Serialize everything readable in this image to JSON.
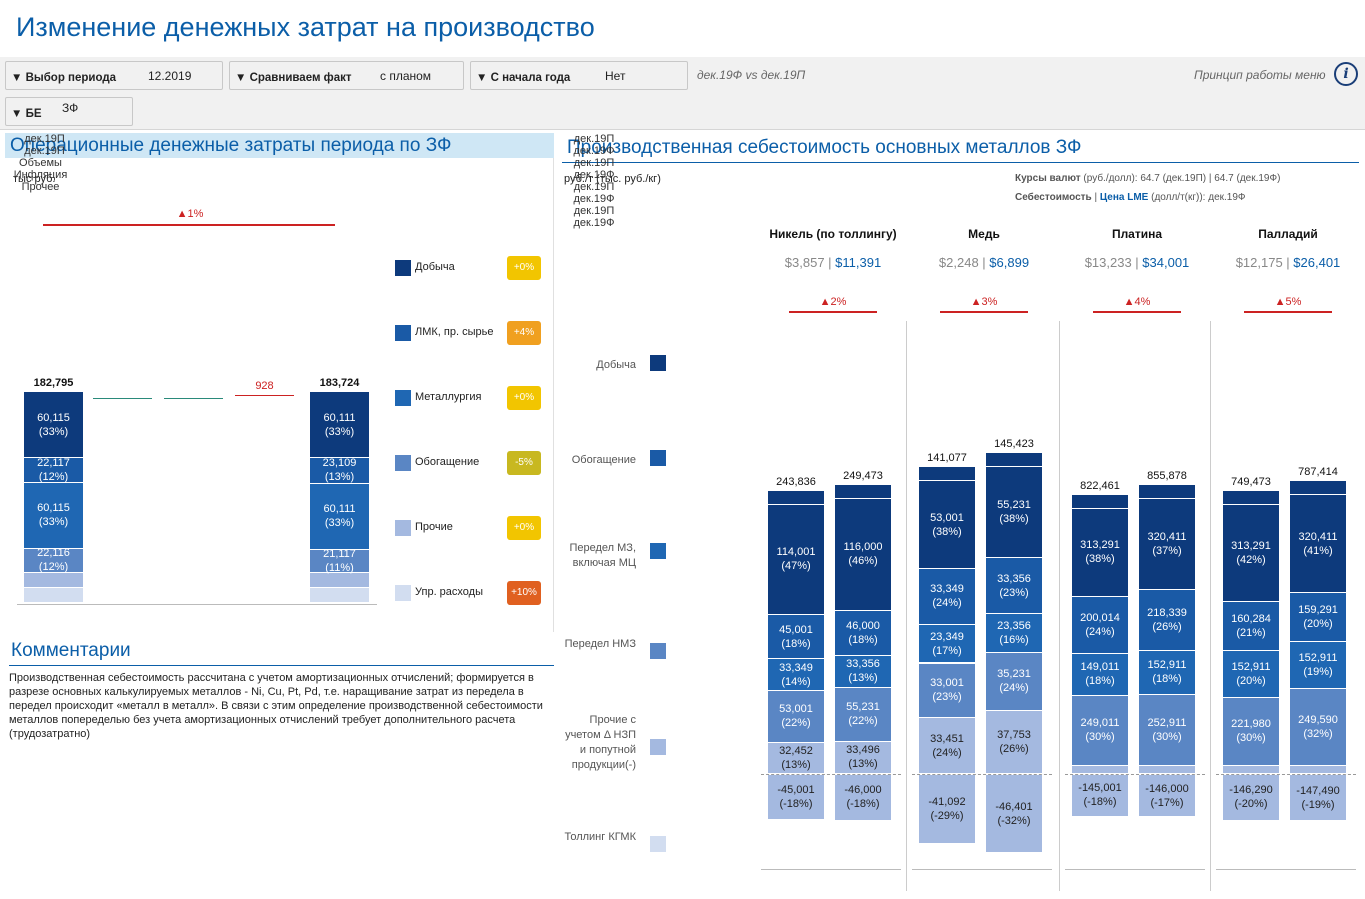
{
  "title": "Изменение денежных затрат на производство",
  "filters": {
    "period_label": "Выбор периода",
    "period_value": "12.2019",
    "compare_label": "Сравниваем факт",
    "compare_value": "с планом",
    "ytd_label": "С начала года",
    "ytd_value": "Нет",
    "be_label": "БЕ",
    "be_value": "ЗФ",
    "comparison_text": "дек.19Ф vs дек.19П",
    "help_link": "Принцип работы меню"
  },
  "colors": {
    "c1": "#0d3a7c",
    "c2": "#1a5aa6",
    "c3": "#1f67b3",
    "c4": "#5a86c4",
    "c5": "#a4b9e0",
    "c6": "#d2ddf0",
    "red": "#cc2222",
    "accent": "#0b5ea8"
  },
  "left_panel": {
    "title": "Операционные денежные затраты периода по ЗФ",
    "unit": "тыс руб.",
    "total_delta": "▲1%",
    "bar1": {
      "total": "182,795",
      "label": "дек.19П",
      "segments": [
        {
          "v": "60,115",
          "p": "(33%)"
        },
        {
          "v": "22,117",
          "p": "(12%)"
        },
        {
          "v": "60,115",
          "p": "(33%)"
        },
        {
          "v": "22,116",
          "p": "(12%)"
        },
        {
          "v": "",
          "p": ""
        },
        {
          "v": "",
          "p": ""
        }
      ]
    },
    "bar2": {
      "total": "183,724",
      "label": "дек.19П",
      "segments": [
        {
          "v": "60,111",
          "p": "(33%)"
        },
        {
          "v": "23,109",
          "p": "(13%)"
        },
        {
          "v": "60,111",
          "p": "(33%)"
        },
        {
          "v": "21,117",
          "p": "(11%)"
        },
        {
          "v": "",
          "p": ""
        },
        {
          "v": "",
          "p": ""
        }
      ]
    },
    "bridge": [
      {
        "label": "Объемы",
        "value": ""
      },
      {
        "label": "Инфляция",
        "value": ""
      },
      {
        "label": "Прочее",
        "value": "928"
      }
    ],
    "legend": [
      {
        "name": "Добыча",
        "change": "+0%",
        "badge": "#f2c500"
      },
      {
        "name": "ЛМК, пр. сырье",
        "change": "+4%",
        "badge": "#f0a020"
      },
      {
        "name": "Металлургия",
        "change": "+0%",
        "badge": "#f2c500"
      },
      {
        "name": "Обогащение",
        "change": "-5%",
        "badge": "#c8b820"
      },
      {
        "name": "Прочие",
        "change": "+0%",
        "badge": "#f2c500"
      },
      {
        "name": "Упр. расходы",
        "change": "+10%",
        "badge": "#e06020"
      }
    ]
  },
  "comments": {
    "title": "Комментарии",
    "text": "Производственная себестоимость рассчитана с учетом амортизационных отчислений; формируется в разрезе основных калькулируемых металлов - Ni, Cu, Pt, Pd, т.е. наращивание затрат из передела в передел происходит «металл в металл». В связи с этим определение производственной себестоимости металлов попеределью без учета амортизационных отчислений требует дополнительного расчета (трудозатратно)"
  },
  "right_panel": {
    "title": "Производственная себестоимость основных металлов ЗФ",
    "unit": "руб./т (тыс. руб./кг)",
    "fx_label": "Курсы валют",
    "fx_text": "(руб./долл): 64.7 (дек.19П) | 64.7 (дек.19Ф)",
    "cost_label": "Себестоимость",
    "lme_label": "Цена LME",
    "lme_text": "(долл/т(кг)): дек.19Ф",
    "lme_end": "дек.19Ф",
    "legend": [
      {
        "name": "Добыча"
      },
      {
        "name": "Обогащение"
      },
      {
        "name": "Передел МЗ, включая МЦ"
      },
      {
        "name": "Передел НМЗ"
      },
      {
        "name": "Прочие с учетом Δ НЗП и попутной продукции(-)"
      },
      {
        "name": "Толлинг КГМК"
      }
    ],
    "metals": [
      {
        "name": "Никель (по толлингу)",
        "cost": "$3,857",
        "lme": "$11,391",
        "delta": "▲2%",
        "bars": [
          {
            "label": "дек.19П",
            "total": "243,836",
            "segs": [
              {
                "v": "114,001",
                "p": "(47%)"
              },
              {
                "v": "45,001",
                "p": "(18%)"
              },
              {
                "v": "33,349",
                "p": "(14%)"
              },
              {
                "v": "53,001",
                "p": "(22%)"
              },
              {
                "v": "32,452",
                "p": "(13%)"
              },
              {
                "v": "-45,001",
                "p": "(-18%)"
              }
            ]
          },
          {
            "label": "дек.19Ф",
            "total": "249,473",
            "segs": [
              {
                "v": "116,000",
                "p": "(46%)"
              },
              {
                "v": "46,000",
                "p": "(18%)"
              },
              {
                "v": "33,356",
                "p": "(13%)"
              },
              {
                "v": "55,231",
                "p": "(22%)"
              },
              {
                "v": "33,496",
                "p": "(13%)"
              },
              {
                "v": "-46,000",
                "p": "(-18%)"
              }
            ]
          }
        ]
      },
      {
        "name": "Медь",
        "cost": "$2,248",
        "lme": "$6,899",
        "delta": "▲3%",
        "bars": [
          {
            "label": "дек.19П",
            "total": "141,077",
            "segs": [
              {
                "v": "53,001",
                "p": "(38%)"
              },
              {
                "v": "33,349",
                "p": "(24%)"
              },
              {
                "v": "23,349",
                "p": "(17%)"
              },
              {
                "v": "33,001",
                "p": "(23%)"
              },
              {
                "v": "33,451",
                "p": "(24%)"
              },
              {
                "v": "-41,092",
                "p": "(-29%)"
              }
            ]
          },
          {
            "label": "дек.19Ф",
            "total": "145,423",
            "segs": [
              {
                "v": "55,231",
                "p": "(38%)"
              },
              {
                "v": "33,356",
                "p": "(23%)"
              },
              {
                "v": "23,356",
                "p": "(16%)"
              },
              {
                "v": "35,231",
                "p": "(24%)"
              },
              {
                "v": "37,753",
                "p": "(26%)"
              },
              {
                "v": "-46,401",
                "p": "(-32%)"
              }
            ]
          }
        ]
      },
      {
        "name": "Платина",
        "cost": "$13,233",
        "lme": "$34,001",
        "delta": "▲4%",
        "bars": [
          {
            "label": "дек.19П",
            "total": "822,461",
            "segs": [
              {
                "v": "313,291",
                "p": "(38%)"
              },
              {
                "v": "200,014",
                "p": "(24%)"
              },
              {
                "v": "149,011",
                "p": "(18%)"
              },
              {
                "v": "249,011",
                "p": "(30%)"
              },
              {
                "v": "",
                "p": ""
              },
              {
                "v": "-145,001",
                "p": "(-18%)"
              }
            ]
          },
          {
            "label": "дек.19Ф",
            "total": "855,878",
            "segs": [
              {
                "v": "320,411",
                "p": "(37%)"
              },
              {
                "v": "218,339",
                "p": "(26%)"
              },
              {
                "v": "152,911",
                "p": "(18%)"
              },
              {
                "v": "252,911",
                "p": "(30%)"
              },
              {
                "v": "",
                "p": ""
              },
              {
                "v": "-146,000",
                "p": "(-17%)"
              }
            ]
          }
        ]
      },
      {
        "name": "Палладий",
        "cost": "$12,175",
        "lme": "$26,401",
        "delta": "▲5%",
        "bars": [
          {
            "label": "дек.19П",
            "total": "749,473",
            "segs": [
              {
                "v": "313,291",
                "p": "(42%)"
              },
              {
                "v": "160,284",
                "p": "(21%)"
              },
              {
                "v": "152,911",
                "p": "(20%)"
              },
              {
                "v": "221,980",
                "p": "(30%)"
              },
              {
                "v": "",
                "p": ""
              },
              {
                "v": "-146,290",
                "p": "(-20%)"
              }
            ]
          },
          {
            "label": "дек.19Ф",
            "total": "787,414",
            "segs": [
              {
                "v": "320,411",
                "p": "(41%)"
              },
              {
                "v": "159,291",
                "p": "(20%)"
              },
              {
                "v": "152,911",
                "p": "(19%)"
              },
              {
                "v": "249,590",
                "p": "(32%)"
              },
              {
                "v": "",
                "p": ""
              },
              {
                "v": "-147,490",
                "p": "(-19%)"
              }
            ]
          }
        ]
      }
    ]
  }
}
